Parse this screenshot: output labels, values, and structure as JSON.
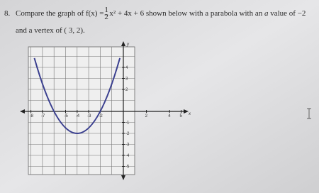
{
  "question": {
    "number": "8.",
    "text_before": "Compare the graph of f(x) = ",
    "fraction_numerator": "1",
    "fraction_denominator": "2",
    "text_after": "x² + 4x + 6 shown below with a parabola with an ",
    "italic_a": "a",
    "text_end": " value of −2",
    "line2": "and a vertex of ( 3, 2)."
  },
  "graph": {
    "x_axis_label": "x",
    "y_axis_label": "y",
    "x_tick_labels": [
      -8,
      -7,
      -5,
      -4,
      -3,
      -2,
      2,
      4,
      5
    ],
    "y_tick_labels": [
      4,
      3,
      2,
      -1,
      -2,
      -3,
      -4,
      -5
    ]
  }
}
